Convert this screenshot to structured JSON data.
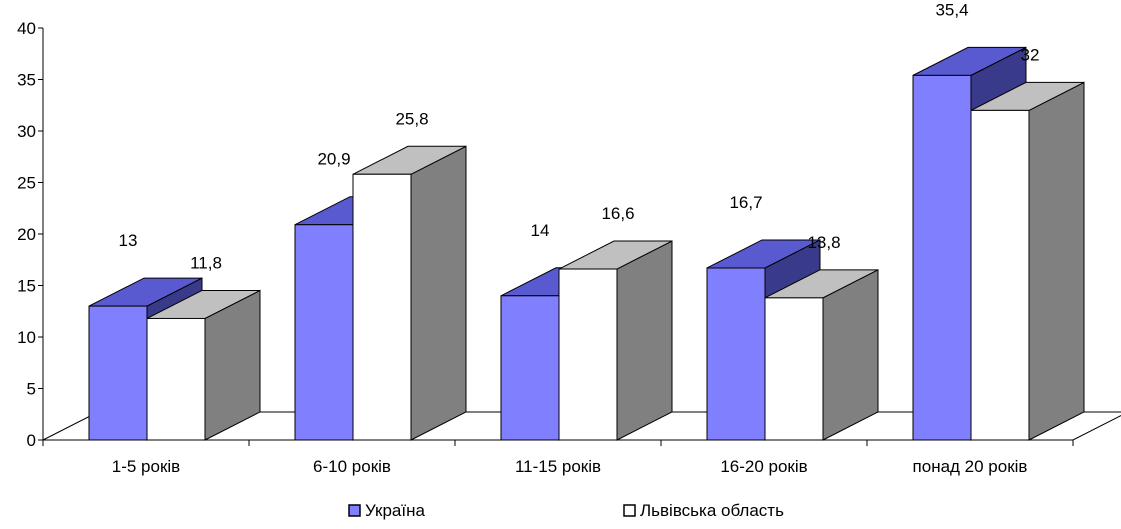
{
  "chart_data": {
    "type": "bar",
    "categories": [
      "1-5 років",
      "6-10 років",
      "11-15 років",
      "16-20 років",
      "понад 20 років"
    ],
    "series": [
      {
        "name": "Україна",
        "values": [
          13,
          20.9,
          14,
          16.7,
          35.4
        ],
        "labels": [
          "13",
          "20,9",
          "14",
          "16,7",
          "35,4"
        ]
      },
      {
        "name": "Львівська область",
        "values": [
          11.8,
          25.8,
          16.6,
          13.8,
          32
        ],
        "labels": [
          "11,8",
          "25,8",
          "16,6",
          "13,8",
          "32"
        ]
      }
    ],
    "y_ticks": [
      "0",
      "5",
      "10",
      "15",
      "20",
      "25",
      "30",
      "35",
      "40"
    ],
    "ylim": [
      0,
      40
    ],
    "legend_position": "bottom",
    "style": "3d-bar",
    "colors": {
      "series1_front": "#8080ff",
      "series1_top": "#5a5ad0",
      "series1_side": "#3a3a8a",
      "series2_front": "#ffffff",
      "series2_top": "#c0c0c0",
      "series2_side": "#808080",
      "outline": "#000000"
    }
  }
}
